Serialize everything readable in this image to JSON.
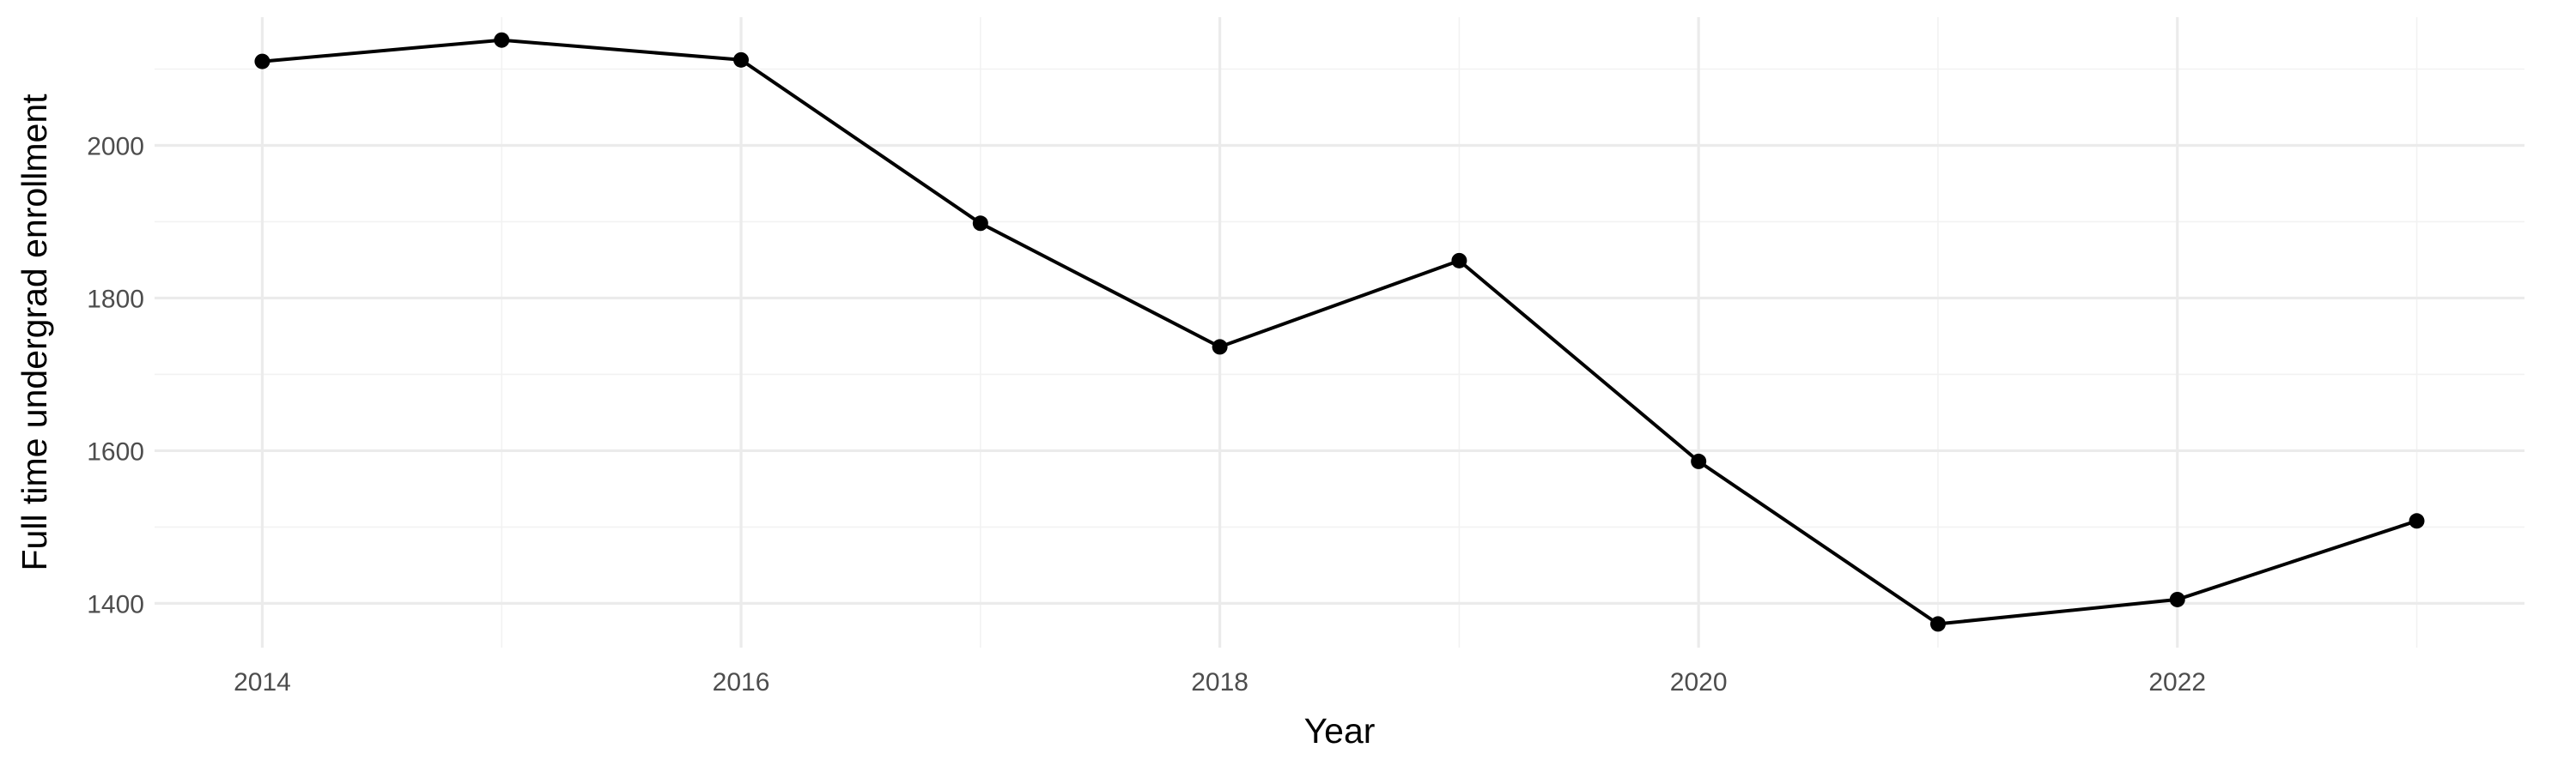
{
  "chart_data": {
    "type": "line",
    "title": "",
    "xlabel": "Year",
    "ylabel": "Full time undergrad enrollment",
    "x": [
      2014,
      2015,
      2016,
      2017,
      2018,
      2019,
      2020,
      2021,
      2022,
      2023
    ],
    "series": [
      {
        "values": [
          2110,
          2138,
          2112,
          1898,
          1736,
          1849,
          1586,
          1373,
          1405,
          1508
        ],
        "color": "#000000"
      }
    ],
    "xlim": [
      2013.55,
      2023.45
    ],
    "ylim": [
      1342,
      2168
    ],
    "x_ticks": [
      2014,
      2016,
      2018,
      2020,
      2022
    ],
    "x_tick_labels": [
      "2014",
      "2016",
      "2018",
      "2020",
      "2022"
    ],
    "y_ticks": [
      1400,
      1600,
      1800,
      2000
    ],
    "y_tick_labels": [
      "1400",
      "1600",
      "1800",
      "2000"
    ],
    "grid": true,
    "legend": "none",
    "markers": true
  }
}
